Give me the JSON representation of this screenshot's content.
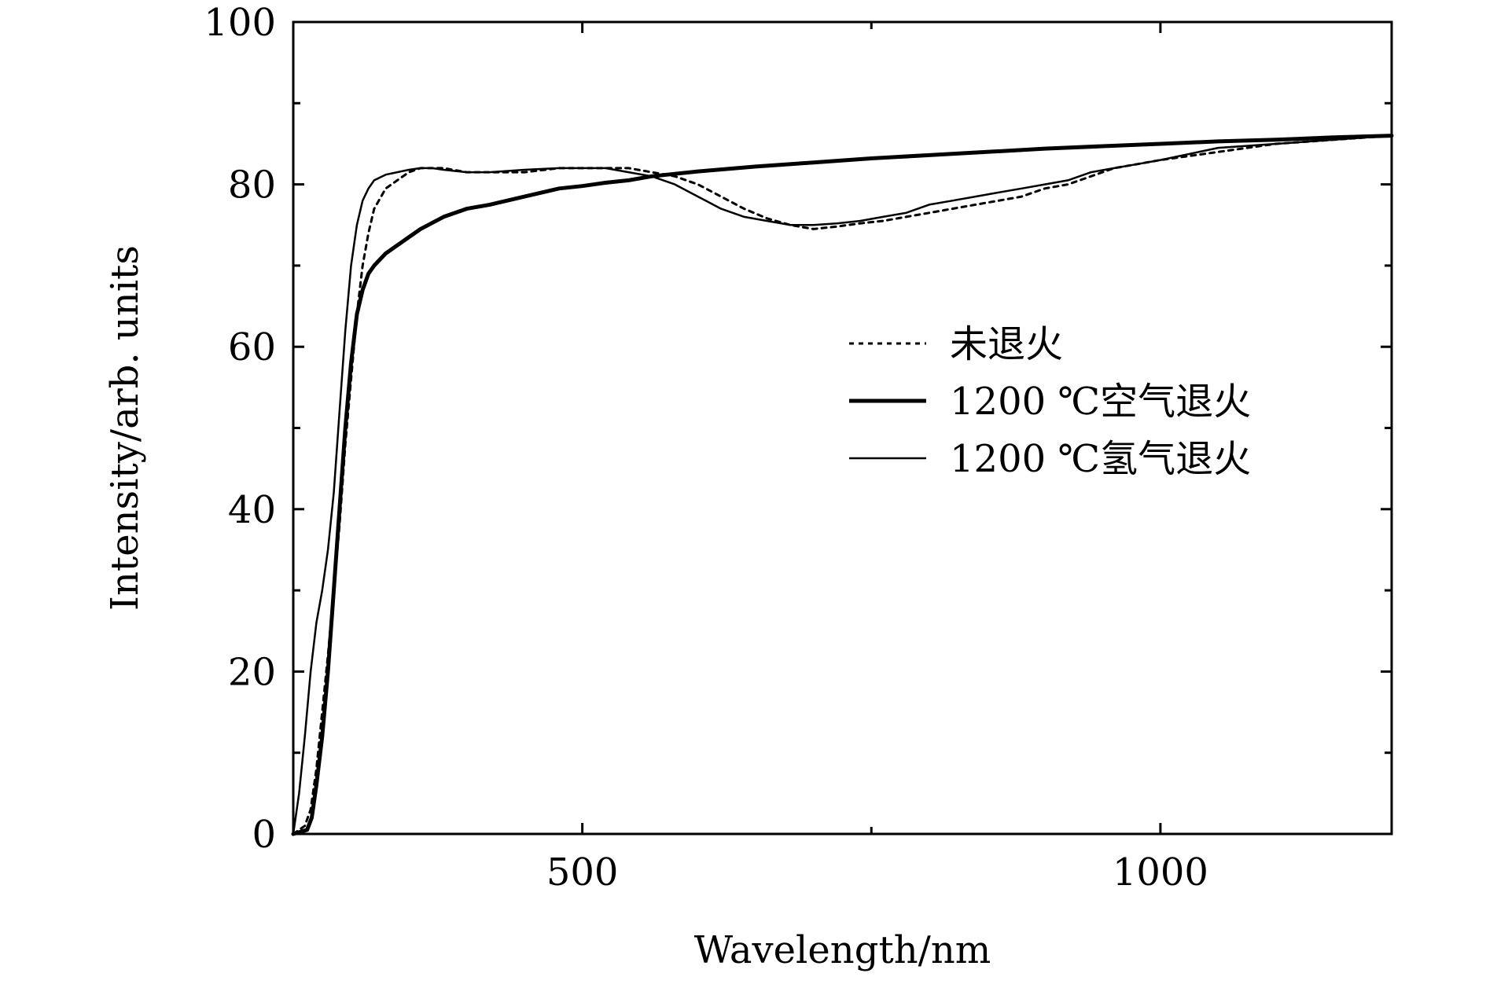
{
  "chart_data": {
    "type": "line",
    "title": "",
    "xlabel": "Wavelength/nm",
    "ylabel": "Intensity/arb. units",
    "xlim": [
      250,
      1200
    ],
    "ylim": [
      0,
      100
    ],
    "x_ticks": [
      500,
      1000
    ],
    "y_ticks": [
      0,
      20,
      40,
      60,
      80,
      100
    ],
    "x_minor_ticks": [
      750
    ],
    "y_minor_ticks": [
      10,
      30,
      50,
      70,
      90
    ],
    "grid": false,
    "legend_position": "right-center",
    "series": [
      {
        "name": "未退火",
        "style": "dotted",
        "x": [
          250,
          260,
          265,
          270,
          275,
          280,
          285,
          290,
          295,
          300,
          305,
          310,
          315,
          320,
          330,
          340,
          350,
          360,
          370,
          380,
          400,
          420,
          450,
          480,
          500,
          520,
          540,
          560,
          580,
          600,
          620,
          640,
          660,
          680,
          700,
          720,
          740,
          760,
          780,
          800,
          820,
          840,
          860,
          880,
          900,
          920,
          940,
          960,
          980,
          1000,
          1050,
          1100,
          1150,
          1200
        ],
        "y": [
          0,
          1,
          3,
          8,
          15,
          22,
          30,
          38,
          48,
          56,
          64,
          70,
          74,
          77,
          79.5,
          80.5,
          81.5,
          82,
          82,
          82,
          81.5,
          81.5,
          81.5,
          82,
          82,
          82,
          82,
          81.5,
          81,
          80,
          78.5,
          77,
          75.8,
          75,
          74.5,
          74.8,
          75.2,
          75.5,
          76,
          76.5,
          77,
          77.5,
          78,
          78.5,
          79.5,
          80,
          81,
          82,
          82.5,
          83,
          84,
          85,
          85.5,
          86
        ]
      },
      {
        "name": "1200 ℃空气退火",
        "style": "thick",
        "x": [
          250,
          262,
          266,
          270,
          275,
          280,
          285,
          290,
          295,
          300,
          305,
          310,
          315,
          320,
          330,
          340,
          350,
          360,
          380,
          400,
          420,
          450,
          480,
          500,
          520,
          540,
          560,
          580,
          600,
          650,
          700,
          750,
          800,
          850,
          900,
          950,
          1000,
          1050,
          1100,
          1150,
          1200
        ],
        "y": [
          0,
          0.5,
          2,
          6,
          12,
          20,
          30,
          40,
          50,
          58,
          64,
          67,
          69,
          70,
          71.5,
          72.5,
          73.5,
          74.5,
          76,
          77,
          77.5,
          78.5,
          79.5,
          79.8,
          80.2,
          80.5,
          81,
          81.3,
          81.6,
          82.2,
          82.7,
          83.2,
          83.6,
          84,
          84.4,
          84.7,
          85,
          85.3,
          85.5,
          85.8,
          86
        ]
      },
      {
        "name": "1200 ℃氢气退火",
        "style": "thin",
        "x": [
          250,
          255,
          260,
          265,
          270,
          275,
          280,
          285,
          290,
          295,
          300,
          305,
          310,
          315,
          320,
          330,
          340,
          350,
          360,
          370,
          380,
          400,
          420,
          450,
          480,
          500,
          520,
          540,
          560,
          580,
          600,
          620,
          640,
          660,
          680,
          700,
          720,
          740,
          760,
          780,
          800,
          820,
          840,
          860,
          880,
          900,
          920,
          940,
          960,
          980,
          1000,
          1050,
          1100,
          1150,
          1200
        ],
        "y": [
          0,
          5,
          12,
          20,
          26,
          30,
          35,
          42,
          52,
          62,
          70,
          75,
          78,
          79.5,
          80.5,
          81.2,
          81.5,
          81.8,
          82,
          82,
          81.8,
          81.5,
          81.5,
          81.8,
          82,
          82,
          82,
          81.5,
          81,
          80,
          78.5,
          77,
          76,
          75.5,
          75,
          75,
          75.2,
          75.5,
          76,
          76.5,
          77.5,
          78,
          78.5,
          79,
          79.5,
          80,
          80.5,
          81.5,
          82,
          82.5,
          83,
          84.5,
          85,
          85.5,
          86
        ]
      }
    ]
  }
}
